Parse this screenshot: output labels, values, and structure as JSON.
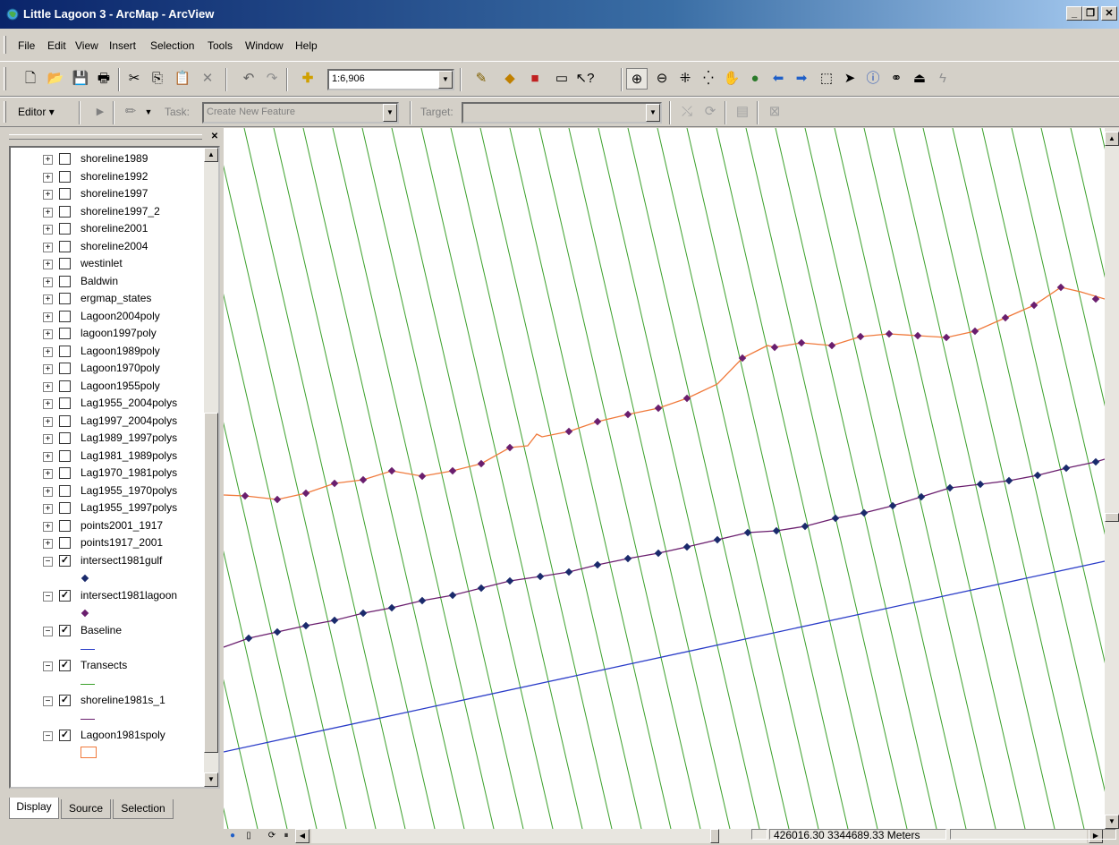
{
  "window": {
    "title": "Little Lagoon 3 - ArcMap - ArcView",
    "minimize_label": "_",
    "restore_label": "ﾖ",
    "close_label": "X"
  },
  "menu": {
    "items": [
      "File",
      "Edit",
      "View",
      "Insert",
      "Selection",
      "Tools",
      "Window",
      "Help"
    ]
  },
  "toolbar": {
    "scale_value": "1:6,906"
  },
  "editor": {
    "editor_label": "Editor",
    "task_label": "Task:",
    "task_value": "Create New Feature",
    "target_label": "Target:",
    "target_value": ""
  },
  "toc": {
    "layers": [
      {
        "name": "shoreline1989",
        "checked": false,
        "expanded": false
      },
      {
        "name": "shoreline1992",
        "checked": false,
        "expanded": false
      },
      {
        "name": "shoreline1997",
        "checked": false,
        "expanded": false
      },
      {
        "name": "shoreline1997_2",
        "checked": false,
        "expanded": false
      },
      {
        "name": "shoreline2001",
        "checked": false,
        "expanded": false
      },
      {
        "name": "shoreline2004",
        "checked": false,
        "expanded": false
      },
      {
        "name": "westinlet",
        "checked": false,
        "expanded": false
      },
      {
        "name": "Baldwin",
        "checked": false,
        "expanded": false
      },
      {
        "name": "ergmap_states",
        "checked": false,
        "expanded": false
      },
      {
        "name": "Lagoon2004poly",
        "checked": false,
        "expanded": false
      },
      {
        "name": "lagoon1997poly",
        "checked": false,
        "expanded": false
      },
      {
        "name": "Lagoon1989poly",
        "checked": false,
        "expanded": false
      },
      {
        "name": "Lagoon1970poly",
        "checked": false,
        "expanded": false
      },
      {
        "name": "Lagoon1955poly",
        "checked": false,
        "expanded": false
      },
      {
        "name": "Lag1955_2004polys",
        "checked": false,
        "expanded": false
      },
      {
        "name": "Lag1997_2004polys",
        "checked": false,
        "expanded": false
      },
      {
        "name": "Lag1989_1997polys",
        "checked": false,
        "expanded": false
      },
      {
        "name": "Lag1981_1989polys",
        "checked": false,
        "expanded": false
      },
      {
        "name": "Lag1970_1981polys",
        "checked": false,
        "expanded": false
      },
      {
        "name": "Lag1955_1970polys",
        "checked": false,
        "expanded": false
      },
      {
        "name": "Lag1955_1997polys",
        "checked": false,
        "expanded": false
      },
      {
        "name": "points2001_1917",
        "checked": false,
        "expanded": false
      },
      {
        "name": "points1917_2001",
        "checked": false,
        "expanded": false
      },
      {
        "name": "intersect1981gulf",
        "checked": true,
        "expanded": true,
        "symbol": "point",
        "color": "#1a2a6c"
      },
      {
        "name": "intersect1981lagoon",
        "checked": true,
        "expanded": true,
        "symbol": "point",
        "color": "#6a1e6e"
      },
      {
        "name": "Baseline",
        "checked": true,
        "expanded": true,
        "symbol": "line",
        "color": "#2a3cc8"
      },
      {
        "name": "Transects",
        "checked": true,
        "expanded": true,
        "symbol": "line",
        "color": "#3aa02a"
      },
      {
        "name": "shoreline1981s_1",
        "checked": true,
        "expanded": true,
        "symbol": "line",
        "color": "#6a1e6e"
      },
      {
        "name": "Lagoon1981spoly",
        "checked": true,
        "expanded": true,
        "symbol": "polygon",
        "color": "#f07a3c"
      }
    ],
    "tabs": [
      "Display",
      "Source",
      "Selection"
    ]
  },
  "status": {
    "coordinates": "426016.30  3344689.33 Meters"
  },
  "colors": {
    "transect": "#3aa02a",
    "baseline": "#2a3cc8",
    "lagoon": "#f07a3c",
    "shoreline": "#6a1e6e",
    "gulf_point": "#1a2a6c"
  }
}
